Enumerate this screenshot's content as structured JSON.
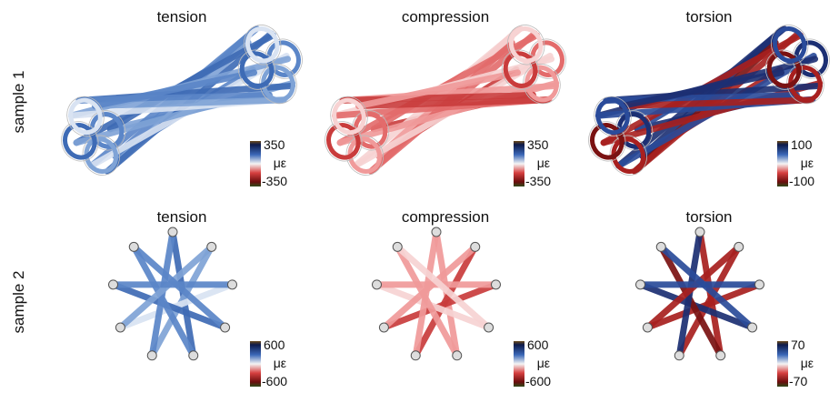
{
  "rows": [
    {
      "label": "sample 1",
      "panels": [
        {
          "title": "tension",
          "colorbar": {
            "max": 350,
            "unit": "με",
            "min": -350
          }
        },
        {
          "title": "compression",
          "colorbar": {
            "max": 350,
            "unit": "με",
            "min": -350
          }
        },
        {
          "title": "torsion",
          "colorbar": {
            "max": 100,
            "unit": "με",
            "min": -100
          }
        }
      ]
    },
    {
      "label": "sample 2",
      "panels": [
        {
          "title": "tension",
          "colorbar": {
            "max": 600,
            "unit": "με",
            "min": -600
          }
        },
        {
          "title": "compression",
          "colorbar": {
            "max": 600,
            "unit": "με",
            "min": -600
          }
        },
        {
          "title": "torsion",
          "colorbar": {
            "max": 70,
            "unit": "με",
            "min": -70
          }
        }
      ]
    }
  ]
}
